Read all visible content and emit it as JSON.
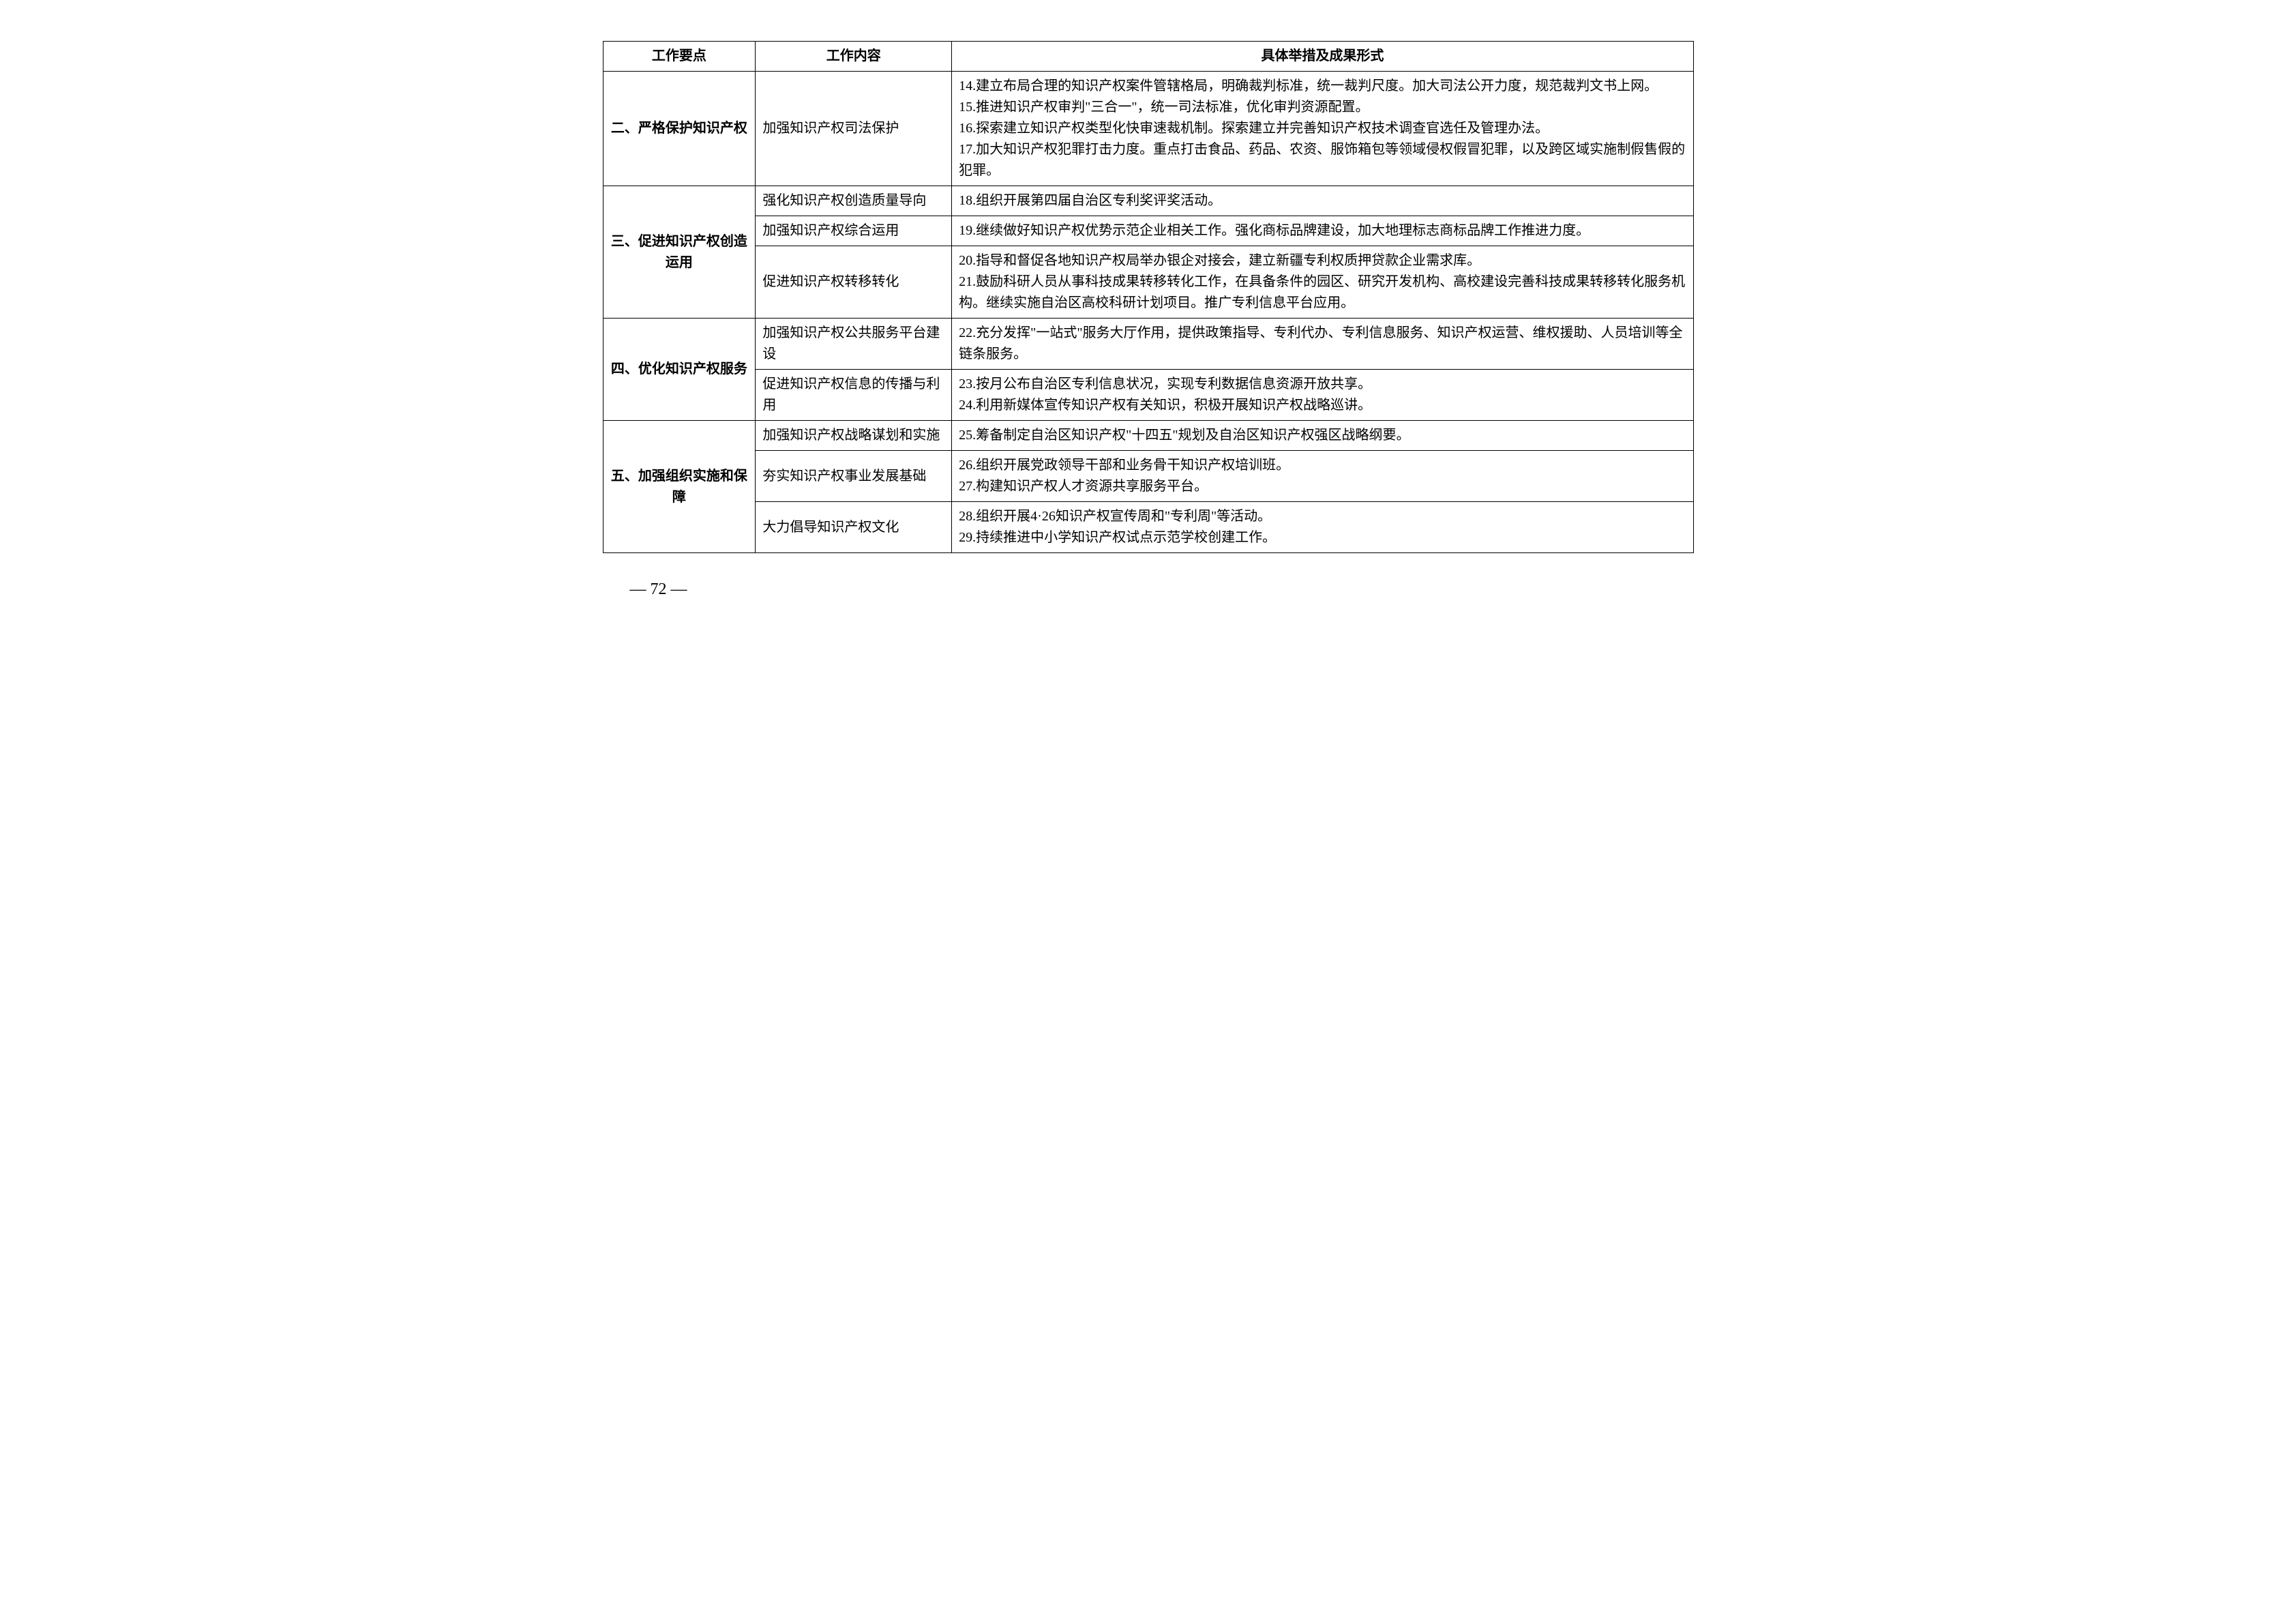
{
  "headers": {
    "col1": "工作要点",
    "col2": "工作内容",
    "col3": "具体举措及成果形式"
  },
  "sections": [
    {
      "key": "二、严格保护知识产权",
      "rows": [
        {
          "content": "加强知识产权司法保护",
          "measures": [
            "14.建立布局合理的知识产权案件管辖格局，明确裁判标准，统一裁判尺度。加大司法公开力度，规范裁判文书上网。",
            "15.推进知识产权审判\"三合一\"，统一司法标准，优化审判资源配置。",
            "16.探索建立知识产权类型化快审速裁机制。探索建立并完善知识产权技术调查官选任及管理办法。",
            "17.加大知识产权犯罪打击力度。重点打击食品、药品、农资、服饰箱包等领域侵权假冒犯罪，以及跨区域实施制假售假的犯罪。"
          ]
        }
      ]
    },
    {
      "key": "三、促进知识产权创造运用",
      "rows": [
        {
          "content": "强化知识产权创造质量导向",
          "measures": [
            "18.组织开展第四届自治区专利奖评奖活动。"
          ]
        },
        {
          "content": "加强知识产权综合运用",
          "measures": [
            "19.继续做好知识产权优势示范企业相关工作。强化商标品牌建设，加大地理标志商标品牌工作推进力度。"
          ]
        },
        {
          "content": "促进知识产权转移转化",
          "measures": [
            "20.指导和督促各地知识产权局举办银企对接会，建立新疆专利权质押贷款企业需求库。",
            "21.鼓励科研人员从事科技成果转移转化工作，在具备条件的园区、研究开发机构、高校建设完善科技成果转移转化服务机构。继续实施自治区高校科研计划项目。推广专利信息平台应用。"
          ]
        }
      ]
    },
    {
      "key": "四、优化知识产权服务",
      "rows": [
        {
          "content": "加强知识产权公共服务平台建设",
          "measures": [
            "22.充分发挥\"一站式\"服务大厅作用，提供政策指导、专利代办、专利信息服务、知识产权运营、维权援助、人员培训等全链条服务。"
          ]
        },
        {
          "content": "促进知识产权信息的传播与利用",
          "measures": [
            "23.按月公布自治区专利信息状况，实现专利数据信息资源开放共享。",
            "24.利用新媒体宣传知识产权有关知识，积极开展知识产权战略巡讲。"
          ]
        }
      ]
    },
    {
      "key": "五、加强组织实施和保障",
      "rows": [
        {
          "content": "加强知识产权战略谋划和实施",
          "measures": [
            "25.筹备制定自治区知识产权\"十四五\"规划及自治区知识产权强区战略纲要。"
          ]
        },
        {
          "content": "夯实知识产权事业发展基础",
          "measures": [
            "26.组织开展党政领导干部和业务骨干知识产权培训班。",
            "27.构建知识产权人才资源共享服务平台。"
          ]
        },
        {
          "content": "大力倡导知识产权文化",
          "measures": [
            "28.组织开展4·26知识产权宣传周和\"专利周\"等活动。",
            "29.持续推进中小学知识产权试点示范学校创建工作。"
          ]
        }
      ]
    }
  ],
  "page_number": "— 72 —"
}
